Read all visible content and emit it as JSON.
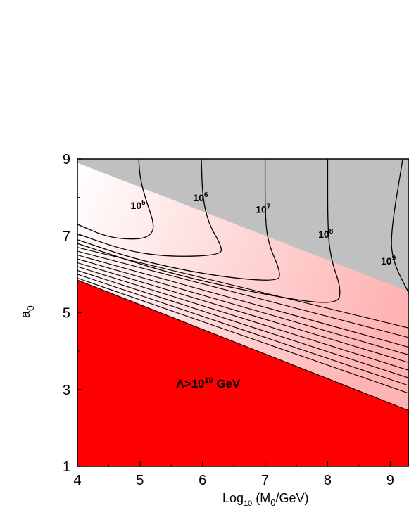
{
  "chart_data": {
    "type": "contour",
    "xlabel": {
      "prefix": "Log",
      "sub": "10",
      "mid": " (M",
      "sub2": "0",
      "suffix": "/GeV)"
    },
    "ylabel": {
      "main": "a",
      "sub": "0"
    },
    "xlim": [
      4,
      9.3
    ],
    "ylim": [
      1,
      9
    ],
    "x_ticks": [
      "4",
      "5",
      "6",
      "7",
      "8",
      "9"
    ],
    "y_ticks": [
      "1",
      "3",
      "5",
      "7",
      "9"
    ],
    "regions": {
      "excluded_color": "#c0c0c0",
      "high_cutoff_color": "#ff0000",
      "gradient_light": "#ffffff",
      "gradient_dark": "#ffb3b3"
    },
    "region_label": {
      "symbol": "Λ>10",
      "exp": "19",
      "unit": " GeV",
      "x": 5.6,
      "y": 3.05
    },
    "upper_boundary": [
      [
        4,
        8.9
      ],
      [
        9.3,
        5.55
      ]
    ],
    "red_boundary": [
      [
        4,
        5.85
      ],
      [
        9.3,
        2.45
      ]
    ],
    "contours": [
      {
        "label": "10",
        "exp": "5",
        "label_x": 4.85,
        "label_y": 7.7,
        "points": [
          [
            4.98,
            9.0
          ],
          [
            5.0,
            8.5
          ],
          [
            5.1,
            7.9
          ],
          [
            5.22,
            7.35
          ],
          [
            5.2,
            7.05
          ],
          [
            5.0,
            6.9
          ],
          [
            4.5,
            6.95
          ],
          [
            4.0,
            7.3
          ]
        ]
      },
      {
        "label": "10",
        "exp": "6",
        "label_x": 5.85,
        "label_y": 7.9,
        "points": [
          [
            5.98,
            9.0
          ],
          [
            6.0,
            8.0
          ],
          [
            6.1,
            7.3
          ],
          [
            6.3,
            6.75
          ],
          [
            6.3,
            6.5
          ],
          [
            5.5,
            6.45
          ],
          [
            4.8,
            6.6
          ],
          [
            4.0,
            7.05
          ]
        ]
      },
      {
        "label": "10",
        "exp": "7",
        "label_x": 6.85,
        "label_y": 7.6,
        "points": [
          [
            7.0,
            9.0
          ],
          [
            7.0,
            7.5
          ],
          [
            7.05,
            6.8
          ],
          [
            7.25,
            6.05
          ],
          [
            7.2,
            5.8
          ],
          [
            6.2,
            5.95
          ],
          [
            5.0,
            6.35
          ],
          [
            4.0,
            6.9
          ]
        ]
      },
      {
        "label": "10",
        "exp": "8",
        "label_x": 7.85,
        "label_y": 6.95,
        "points": [
          [
            8.0,
            9.0
          ],
          [
            8.0,
            7.2
          ],
          [
            8.05,
            6.4
          ],
          [
            8.22,
            5.6
          ],
          [
            8.15,
            5.2
          ],
          [
            7.2,
            5.4
          ],
          [
            5.5,
            6.0
          ],
          [
            4.0,
            6.8
          ]
        ]
      },
      {
        "label": "10",
        "exp": "9",
        "label_x": 8.85,
        "label_y": 6.25,
        "points": [
          [
            9.2,
            9.0
          ],
          [
            9.0,
            7.0
          ],
          [
            9.05,
            6.3
          ],
          [
            9.3,
            5.5
          ]
        ]
      }
    ],
    "bunched_lines_left_y": [
      6.7,
      6.6,
      6.5,
      6.4,
      6.3,
      6.2,
      6.1,
      6.0,
      5.9
    ],
    "bunched_lines_right_y": [
      4.6,
      4.35,
      4.1,
      3.9,
      3.7,
      3.5,
      3.3,
      3.1,
      2.9
    ]
  }
}
